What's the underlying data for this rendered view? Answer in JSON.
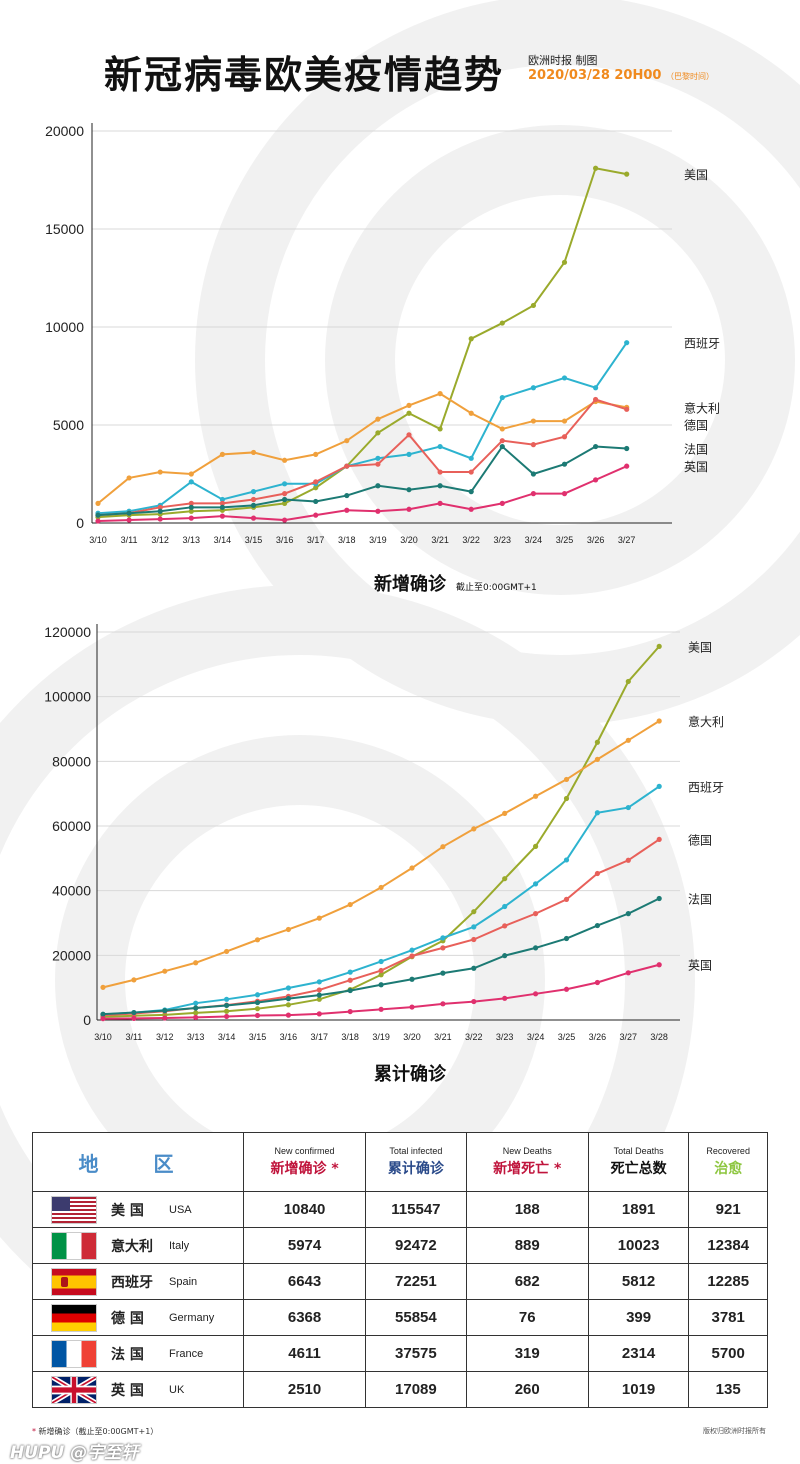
{
  "header": {
    "title": "新冠病毒欧美疫情趋势",
    "credit": "欧洲时报 制图",
    "datetime": "2020/03/28 20H00",
    "tz": "（巴黎时间）"
  },
  "chart_data": [
    {
      "type": "line",
      "title": "新增确诊",
      "subtitle": "截止至0:00GMT+1",
      "categories": [
        "3/10",
        "3/11",
        "3/12",
        "3/13",
        "3/14",
        "3/15",
        "3/16",
        "3/17",
        "3/18",
        "3/19",
        "3/20",
        "3/21",
        "3/22",
        "3/23",
        "3/24",
        "3/25",
        "3/26",
        "3/27"
      ],
      "ylim": [
        0,
        20000
      ],
      "yticks": [
        0,
        5000,
        10000,
        15000,
        20000
      ],
      "grid": true,
      "series": [
        {
          "name": "美国",
          "color": "#9aaa2c",
          "values": [
            300,
            400,
            450,
            600,
            650,
            800,
            1000,
            1800,
            2900,
            4600,
            5600,
            4800,
            9400,
            10200,
            11100,
            13300,
            18100,
            17800
          ]
        },
        {
          "name": "西班牙",
          "color": "#2db3cf",
          "values": [
            500,
            600,
            900,
            2100,
            1200,
            1600,
            2000,
            2000,
            2900,
            3300,
            3500,
            3900,
            3300,
            6400,
            6900,
            7400,
            6900,
            9200
          ]
        },
        {
          "name": "意大利",
          "color": "#f0a03c",
          "values": [
            1000,
            2300,
            2600,
            2500,
            3500,
            3600,
            3200,
            3500,
            4200,
            5300,
            6000,
            6600,
            5600,
            4800,
            5200,
            5200,
            6200,
            5900
          ]
        },
        {
          "name": "德国",
          "color": "#e8605a",
          "values": [
            400,
            500,
            800,
            1000,
            1000,
            1200,
            1500,
            2100,
            2900,
            3000,
            4500,
            2600,
            2600,
            4200,
            4000,
            4400,
            6300,
            5800
          ]
        },
        {
          "name": "法国",
          "color": "#1c7a74",
          "values": [
            400,
            500,
            600,
            800,
            800,
            900,
            1200,
            1100,
            1400,
            1900,
            1700,
            1900,
            1600,
            3900,
            2500,
            3000,
            3900,
            3800
          ]
        },
        {
          "name": "英国",
          "color": "#e0306e",
          "values": [
            100,
            150,
            200,
            250,
            350,
            250,
            150,
            400,
            650,
            600,
            700,
            1000,
            700,
            1000,
            1500,
            1500,
            2200,
            2900
          ]
        }
      ]
    },
    {
      "type": "line",
      "title": "累计确诊",
      "categories": [
        "3/10",
        "3/11",
        "3/12",
        "3/13",
        "3/14",
        "3/15",
        "3/16",
        "3/17",
        "3/18",
        "3/19",
        "3/20",
        "3/21",
        "3/22",
        "3/23",
        "3/24",
        "3/25",
        "3/26",
        "3/27",
        "3/28"
      ],
      "ylim": [
        0,
        120000
      ],
      "yticks": [
        0,
        20000,
        40000,
        60000,
        80000,
        100000,
        120000
      ],
      "grid": true,
      "series": [
        {
          "name": "美国",
          "color": "#9aaa2c",
          "values": [
            1000,
            1300,
            1600,
            2200,
            2700,
            3500,
            4700,
            6400,
            9400,
            14000,
            19600,
            24500,
            33500,
            43700,
            53700,
            68500,
            85900,
            104700,
            115547
          ]
        },
        {
          "name": "意大利",
          "color": "#f0a03c",
          "values": [
            10100,
            12400,
            15100,
            17700,
            21200,
            24800,
            28000,
            31500,
            35700,
            41000,
            47000,
            53600,
            59100,
            63900,
            69200,
            74400,
            80600,
            86500,
            92472
          ]
        },
        {
          "name": "西班牙",
          "color": "#2db3cf",
          "values": [
            1700,
            2300,
            3100,
            5200,
            6400,
            7800,
            9900,
            11800,
            14800,
            18100,
            21600,
            25400,
            28800,
            35100,
            42100,
            49500,
            64100,
            65700,
            72251
          ]
        },
        {
          "name": "德国",
          "color": "#e8605a",
          "values": [
            1500,
            2000,
            2700,
            3700,
            4600,
            5800,
            7300,
            9300,
            12300,
            15300,
            19800,
            22300,
            24900,
            29100,
            32900,
            37300,
            45300,
            49400,
            55854
          ]
        },
        {
          "name": "法国",
          "color": "#1c7a74",
          "values": [
            1800,
            2300,
            2900,
            3700,
            4500,
            5400,
            6600,
            7700,
            9100,
            10900,
            12600,
            14500,
            16000,
            19900,
            22300,
            25200,
            29200,
            32900,
            37575
          ]
        },
        {
          "name": "英国",
          "color": "#e0306e",
          "values": [
            400,
            500,
            600,
            800,
            1100,
            1400,
            1500,
            1900,
            2600,
            3300,
            4000,
            5000,
            5700,
            6700,
            8100,
            9500,
            11600,
            14600,
            17089
          ]
        }
      ]
    }
  ],
  "table": {
    "header": {
      "region": "地 区",
      "cols": [
        {
          "en": "New confirmed",
          "cn": "新增确诊",
          "star": " *",
          "color": "#c0143c"
        },
        {
          "en": "Total infected",
          "cn": "累计确诊",
          "star": "",
          "color": "#2a4a8a"
        },
        {
          "en": "New Deaths",
          "cn": "新增死亡",
          "star": " *",
          "color": "#c0143c"
        },
        {
          "en": "Total Deaths",
          "cn": "死亡总数",
          "star": "",
          "color": "#111111"
        },
        {
          "en": "Recovered",
          "cn": "治愈",
          "star": "",
          "color": "#8dc63f"
        }
      ]
    },
    "rows": [
      {
        "flag": "usa-flag-icon",
        "cn": "美 国",
        "en": "USA",
        "new_confirmed": "10840",
        "total_infected": "115547",
        "new_deaths": "188",
        "total_deaths": "1891",
        "recovered": "921"
      },
      {
        "flag": "italy-flag-icon",
        "cn": "意大利",
        "en": "Italy",
        "new_confirmed": "5974",
        "total_infected": "92472",
        "new_deaths": "889",
        "total_deaths": "10023",
        "recovered": "12384"
      },
      {
        "flag": "spain-flag-icon",
        "cn": "西班牙",
        "en": "Spain",
        "new_confirmed": "6643",
        "total_infected": "72251",
        "new_deaths": "682",
        "total_deaths": "5812",
        "recovered": "12285"
      },
      {
        "flag": "germany-flag-icon",
        "cn": "德 国",
        "en": "Germany",
        "new_confirmed": "6368",
        "total_infected": "55854",
        "new_deaths": "76",
        "total_deaths": "399",
        "recovered": "3781"
      },
      {
        "flag": "france-flag-icon",
        "cn": "法 国",
        "en": "France",
        "new_confirmed": "4611",
        "total_infected": "37575",
        "new_deaths": "319",
        "total_deaths": "2314",
        "recovered": "5700"
      },
      {
        "flag": "uk-flag-icon",
        "cn": "英 国",
        "en": "UK",
        "new_confirmed": "2510",
        "total_infected": "17089",
        "new_deaths": "260",
        "total_deaths": "1019",
        "recovered": "135"
      }
    ]
  },
  "footnote": {
    "star": "*",
    "text": "新增确诊（截止至0:00GMT+1）"
  },
  "copyright": "版权归欧洲时报所有",
  "watermark": "HUPU @宇至轩"
}
